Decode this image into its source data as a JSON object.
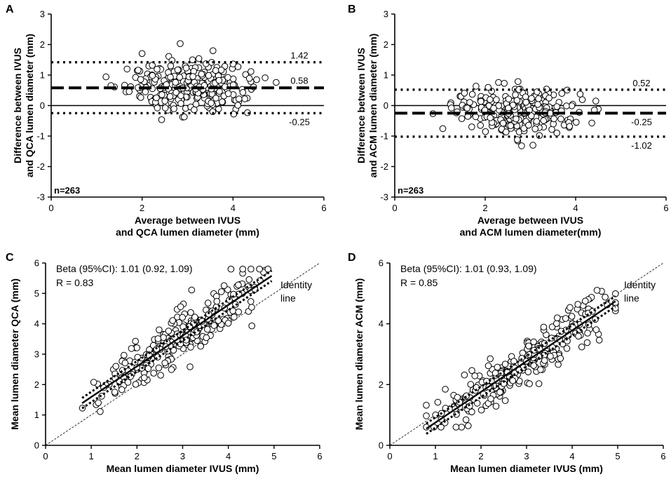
{
  "chart_data": [
    {
      "panel": "A",
      "type": "scatter",
      "subtype": "bland-altman",
      "xlabel": [
        "Average between IVUS",
        "and QCA lumen diameter (mm)"
      ],
      "ylabel": [
        "Difference between IVUS",
        "and QCA lumen diameter (mm)"
      ],
      "xlim": [
        0,
        6
      ],
      "ylim": [
        -3,
        3
      ],
      "xticks": [
        0,
        2,
        4,
        6
      ],
      "yticks": [
        -3,
        -2,
        -1,
        0,
        1,
        2,
        3
      ],
      "n_label": "n=263",
      "mean_line": {
        "value": 0.58,
        "label": "0.58"
      },
      "upper_loa": {
        "value": 1.42,
        "label": "1.42"
      },
      "lower_loa": {
        "value": -0.25,
        "label": "-0.25"
      },
      "zero_line": 0,
      "cloud": {
        "n": 263,
        "x_range": [
          1.0,
          4.95
        ],
        "y_center": 0.58,
        "y_sd": 0.42,
        "seed": 11
      }
    },
    {
      "panel": "B",
      "type": "scatter",
      "subtype": "bland-altman",
      "xlabel": [
        "Average between IVUS",
        "and ACM lumen diameter(mm)"
      ],
      "ylabel": [
        "Difference between IVUS",
        "and ACM lumen diameter (mm)"
      ],
      "xlim": [
        0,
        6
      ],
      "ylim": [
        -3,
        3
      ],
      "xticks": [
        0,
        2,
        4,
        6
      ],
      "yticks": [
        -3,
        -2,
        -1,
        0,
        1,
        2,
        3
      ],
      "n_label": "n=263",
      "mean_line": {
        "value": -0.25,
        "label": "-0.25"
      },
      "upper_loa": {
        "value": 0.52,
        "label": "0.52"
      },
      "lower_loa": {
        "value": -1.02,
        "label": "-1.02"
      },
      "zero_line": 0,
      "cloud": {
        "n": 263,
        "x_range": [
          0.8,
          4.5
        ],
        "y_center": -0.25,
        "y_sd": 0.38,
        "seed": 23
      }
    },
    {
      "panel": "C",
      "type": "scatter",
      "subtype": "regression",
      "xlabel": [
        "Mean lumen diameter IVUS (mm)"
      ],
      "ylabel": [
        "Mean lumen diameter  QCA (mm)"
      ],
      "xlim": [
        0,
        6
      ],
      "ylim": [
        0,
        6
      ],
      "xticks": [
        0,
        1,
        2,
        3,
        4,
        5,
        6
      ],
      "yticks": [
        0,
        1,
        2,
        3,
        4,
        5,
        6
      ],
      "annotation": [
        "Beta (95%CI): 1.01 (0.92, 1.09)",
        "R = 0.83"
      ],
      "identity_label": [
        "Identity",
        "line"
      ],
      "regression": {
        "slope": 1.01,
        "intercept": 0.58,
        "x_range": [
          0.8,
          4.95
        ],
        "ci_offset": 0.17
      },
      "cloud": {
        "n": 263,
        "x_range": [
          0.8,
          4.95
        ],
        "resid_sd": 0.42,
        "seed": 37
      }
    },
    {
      "panel": "D",
      "type": "scatter",
      "subtype": "regression",
      "xlabel": [
        "Mean lumen diameter IVUS (mm)"
      ],
      "ylabel": [
        "Mean lumen diameter  ACM (mm)"
      ],
      "xlim": [
        0,
        6
      ],
      "ylim": [
        0,
        6
      ],
      "xticks": [
        0,
        1,
        2,
        3,
        4,
        5,
        6
      ],
      "yticks": [
        0,
        2,
        4,
        6
      ],
      "annotation": [
        "Beta (95%CI): 1.01 (0.93, 1.09)",
        "R = 0.85"
      ],
      "identity_label": [
        "Identity",
        "line"
      ],
      "regression": {
        "slope": 1.01,
        "intercept": -0.26,
        "x_range": [
          0.8,
          4.95
        ],
        "ci_offset": 0.17
      },
      "cloud": {
        "n": 263,
        "x_range": [
          0.8,
          4.95
        ],
        "resid_sd": 0.38,
        "seed": 53
      }
    }
  ]
}
